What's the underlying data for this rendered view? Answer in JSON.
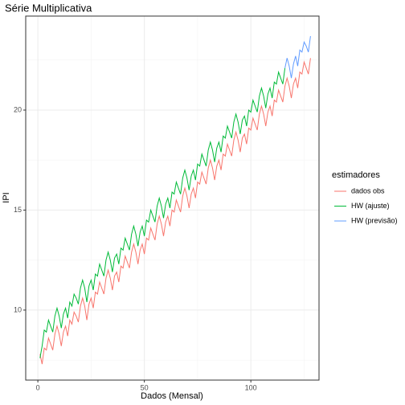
{
  "chart_data": {
    "type": "line",
    "title": "Série Multiplicativa",
    "x_label": "Dados (Mensal)",
    "y_label": "IPI",
    "legend_title": "estimadores",
    "legend": "right",
    "grid": true,
    "xlim": [
      -5.7,
      132
    ],
    "xticks": [
      0,
      50,
      100
    ],
    "ylim": [
      6.5,
      24.7
    ],
    "yticks": [
      10,
      15,
      20
    ],
    "series": [
      {
        "name": "dados obs",
        "color": "#F8766D",
        "x": [
          1,
          2,
          3,
          4,
          5,
          6,
          7,
          8,
          9,
          10,
          11,
          12,
          13,
          14,
          15,
          16,
          17,
          18,
          19,
          20,
          21,
          22,
          23,
          24,
          25,
          26,
          27,
          28,
          29,
          30,
          31,
          32,
          33,
          34,
          35,
          36,
          37,
          38,
          39,
          40,
          41,
          42,
          43,
          44,
          45,
          46,
          47,
          48,
          49,
          50,
          51,
          52,
          53,
          54,
          55,
          56,
          57,
          58,
          59,
          60,
          61,
          62,
          63,
          64,
          65,
          66,
          67,
          68,
          69,
          70,
          71,
          72,
          73,
          74,
          75,
          76,
          77,
          78,
          79,
          80,
          81,
          82,
          83,
          84,
          85,
          86,
          87,
          88,
          89,
          90,
          91,
          92,
          93,
          94,
          95,
          96,
          97,
          98,
          99,
          100,
          101,
          102,
          103,
          104,
          105,
          106,
          107,
          108,
          109,
          110,
          111,
          112,
          113,
          114,
          115,
          116,
          117,
          118,
          119,
          120,
          121,
          122,
          123,
          124,
          125,
          126,
          127,
          128
        ],
        "values": [
          7.8,
          7.3,
          8.1,
          8.0,
          8.6,
          8.3,
          8.0,
          8.8,
          9.2,
          8.8,
          8.2,
          8.9,
          9.2,
          8.7,
          9.5,
          9.3,
          9.9,
          9.7,
          9.4,
          10.2,
          10.6,
          10.2,
          9.5,
          10.3,
          10.6,
          10.1,
          10.9,
          10.8,
          11.4,
          11.1,
          10.8,
          11.6,
          12.0,
          11.6,
          11.0,
          11.7,
          11.9,
          11.4,
          12.2,
          12.1,
          12.7,
          12.4,
          12.1,
          12.9,
          13.3,
          12.9,
          12.3,
          13.0,
          13.3,
          12.8,
          13.6,
          13.5,
          14.1,
          13.8,
          13.5,
          14.3,
          14.7,
          14.3,
          13.7,
          14.4,
          14.7,
          14.2,
          15.0,
          14.9,
          15.5,
          15.2,
          14.9,
          15.7,
          16.1,
          15.7,
          15.1,
          15.8,
          16.1,
          15.6,
          16.4,
          16.3,
          16.9,
          16.6,
          16.3,
          17.1,
          17.5,
          17.1,
          16.5,
          17.2,
          17.5,
          17.0,
          17.8,
          17.7,
          18.3,
          18.0,
          17.7,
          18.5,
          18.9,
          18.5,
          17.9,
          18.6,
          18.8,
          18.3,
          19.1,
          19.0,
          19.6,
          19.3,
          19.0,
          19.8,
          20.2,
          19.8,
          19.2,
          19.9,
          20.2,
          19.7,
          20.5,
          20.4,
          21.0,
          20.7,
          20.4,
          21.2,
          21.6,
          21.2,
          20.6,
          21.3,
          21.6,
          21.1,
          21.9,
          21.8,
          22.4,
          22.1,
          21.8,
          22.6
        ]
      },
      {
        "name": "HW (ajuste)",
        "color": "#00BA38",
        "x": [
          1,
          2,
          3,
          4,
          5,
          6,
          7,
          8,
          9,
          10,
          11,
          12,
          13,
          14,
          15,
          16,
          17,
          18,
          19,
          20,
          21,
          22,
          23,
          24,
          25,
          26,
          27,
          28,
          29,
          30,
          31,
          32,
          33,
          34,
          35,
          36,
          37,
          38,
          39,
          40,
          41,
          42,
          43,
          44,
          45,
          46,
          47,
          48,
          49,
          50,
          51,
          52,
          53,
          54,
          55,
          56,
          57,
          58,
          59,
          60,
          61,
          62,
          63,
          64,
          65,
          66,
          67,
          68,
          69,
          70,
          71,
          72,
          73,
          74,
          75,
          76,
          77,
          78,
          79,
          80,
          81,
          82,
          83,
          84,
          85,
          86,
          87,
          88,
          89,
          90,
          91,
          92,
          93,
          94,
          95,
          96,
          97,
          98,
          99,
          100,
          101,
          102,
          103,
          104,
          105,
          106,
          107,
          108,
          109,
          110,
          111,
          112,
          113,
          114,
          115,
          116
        ],
        "values": [
          7.6,
          8.2,
          9.0,
          8.9,
          9.5,
          9.2,
          8.9,
          9.7,
          10.1,
          9.7,
          9.1,
          9.8,
          10.1,
          9.6,
          10.4,
          10.2,
          10.8,
          10.6,
          10.3,
          11.1,
          11.5,
          11.1,
          10.4,
          11.2,
          11.5,
          11.0,
          11.8,
          11.7,
          12.3,
          12.0,
          11.7,
          12.5,
          12.9,
          12.5,
          11.9,
          12.6,
          12.8,
          12.3,
          13.1,
          13.0,
          13.6,
          13.3,
          13.0,
          13.8,
          14.2,
          13.8,
          13.2,
          13.9,
          14.2,
          13.7,
          14.5,
          14.4,
          15.0,
          14.7,
          14.4,
          15.2,
          15.6,
          15.2,
          14.6,
          15.3,
          15.6,
          15.1,
          15.9,
          15.8,
          16.4,
          16.1,
          15.8,
          16.6,
          17.0,
          16.6,
          16.0,
          16.7,
          17.0,
          16.5,
          17.3,
          17.2,
          17.8,
          17.5,
          17.2,
          18.0,
          18.4,
          18.0,
          17.4,
          18.1,
          18.4,
          17.9,
          18.7,
          18.6,
          19.2,
          18.9,
          18.6,
          19.4,
          19.8,
          19.4,
          18.8,
          19.5,
          19.7,
          19.2,
          20.0,
          19.9,
          20.5,
          20.2,
          19.9,
          20.7,
          21.1,
          20.7,
          20.1,
          20.8,
          21.1,
          20.6,
          21.4,
          21.3,
          21.9,
          21.6,
          21.3,
          22.1
        ]
      },
      {
        "name": "HW (previsão)",
        "color": "#619CFF",
        "x": [
          116,
          117,
          118,
          119,
          120,
          121,
          122,
          123,
          124,
          125,
          126,
          127,
          128
        ],
        "values": [
          22.1,
          22.6,
          22.2,
          21.6,
          22.3,
          22.7,
          22.2,
          23.0,
          22.9,
          23.4,
          23.2,
          22.9,
          23.7
        ]
      }
    ]
  }
}
